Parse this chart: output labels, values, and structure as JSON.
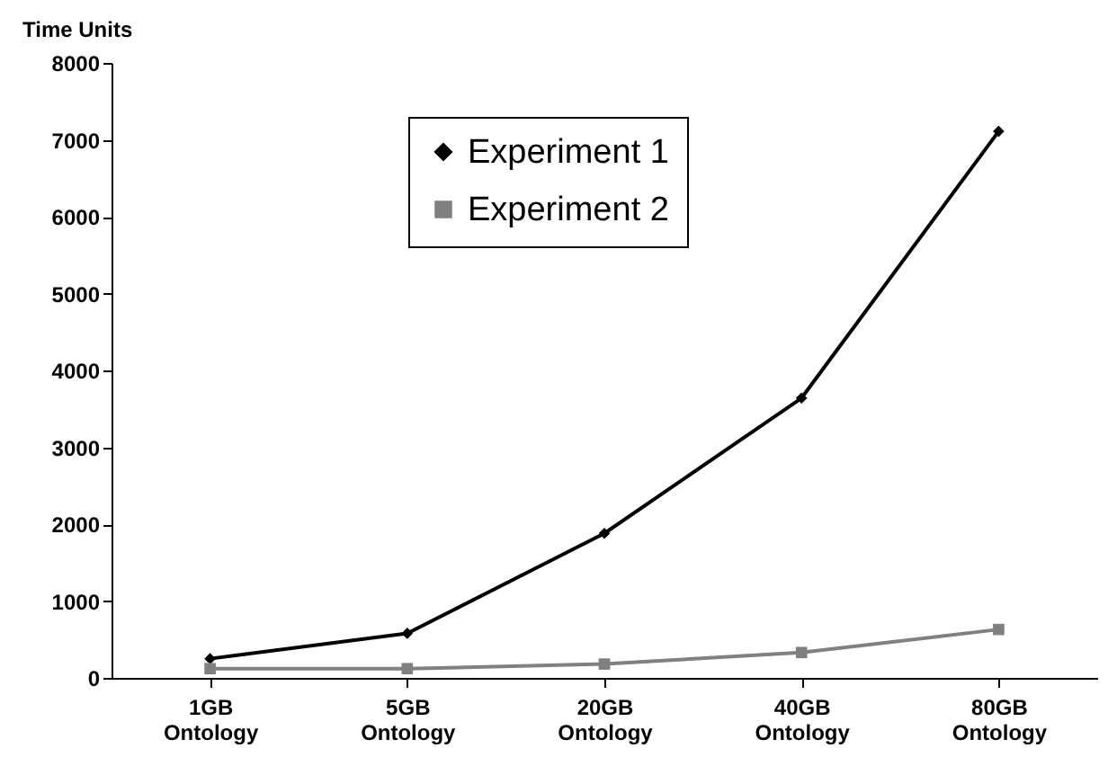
{
  "chart_data": {
    "type": "line",
    "ylabel": "Time Units",
    "categories": [
      "1GB Ontology",
      "5GB Ontology",
      "20GB Ontology",
      "40GB Ontology",
      "80GB Ontology"
    ],
    "series": [
      {
        "name": "Experiment 1",
        "color": "#000000",
        "marker": "diamond",
        "values": [
          250,
          580,
          1880,
          3640,
          7110
        ]
      },
      {
        "name": "Experiment 2",
        "color": "#808080",
        "marker": "square",
        "values": [
          120,
          120,
          180,
          330,
          630
        ]
      }
    ],
    "ylim": [
      0,
      8000
    ],
    "yticks": [
      0,
      1000,
      2000,
      3000,
      4000,
      5000,
      6000,
      7000,
      8000
    ],
    "legend": "top",
    "grid": false,
    "line_style": "solid"
  }
}
